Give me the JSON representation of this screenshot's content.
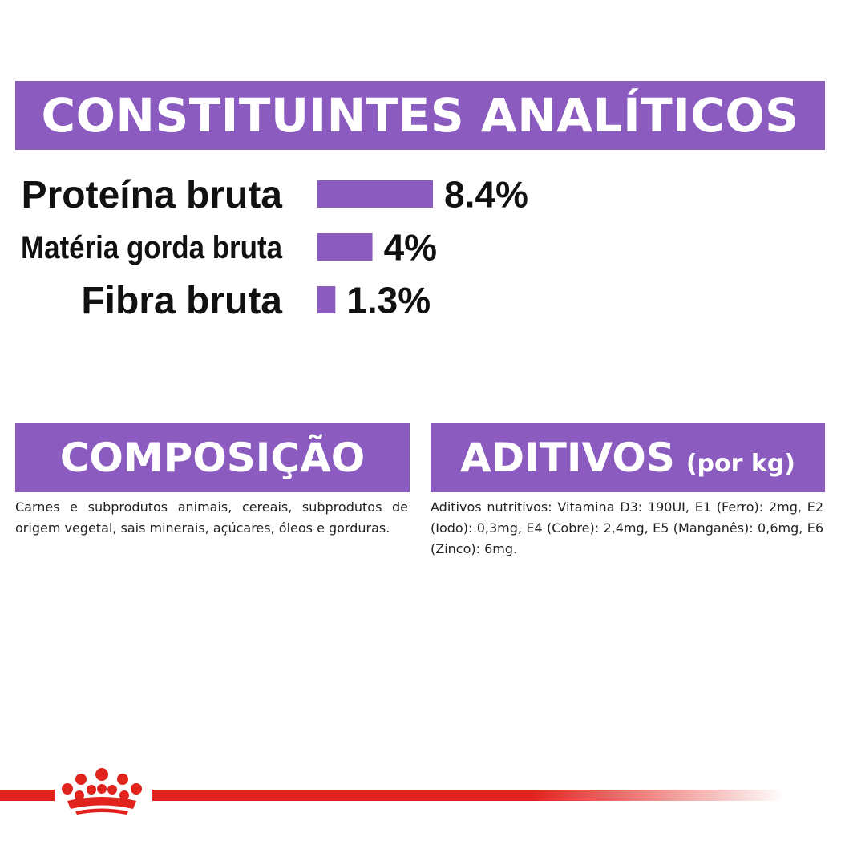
{
  "colors": {
    "accent": "#8b5bc0",
    "brand_red": "#e0231d"
  },
  "header": {
    "title": "CONSTITUINTES ANALÍTICOS"
  },
  "chart_data": {
    "type": "bar",
    "orientation": "horizontal",
    "categories": [
      "Proteína bruta",
      "Matéria gorda bruta",
      "Fibra bruta"
    ],
    "values": [
      8.4,
      4,
      1.3
    ],
    "value_labels": [
      "8.4%",
      "4%",
      "1.3%"
    ],
    "xlim": [
      0,
      8.4
    ],
    "grid": false
  },
  "composition": {
    "title": "COMPOSIÇÃO",
    "text": "Carnes e subprodutos animais, cereais, subprodutos de origem vegetal, sais minerais, açúcares, óleos e gorduras."
  },
  "additives": {
    "title": "ADITIVOS",
    "title_suffix": "(por kg)",
    "text": "Aditivos nutritivos: Vitamina D3: 190UI, E1 (Ferro): 2mg, E2 (Iodo): 0,3mg, E4 (Cobre): 2,4mg, E5 (Manganês): 0,6mg, E6 (Zinco): 6mg."
  },
  "footer": {
    "logo_icon": "crown-icon"
  }
}
